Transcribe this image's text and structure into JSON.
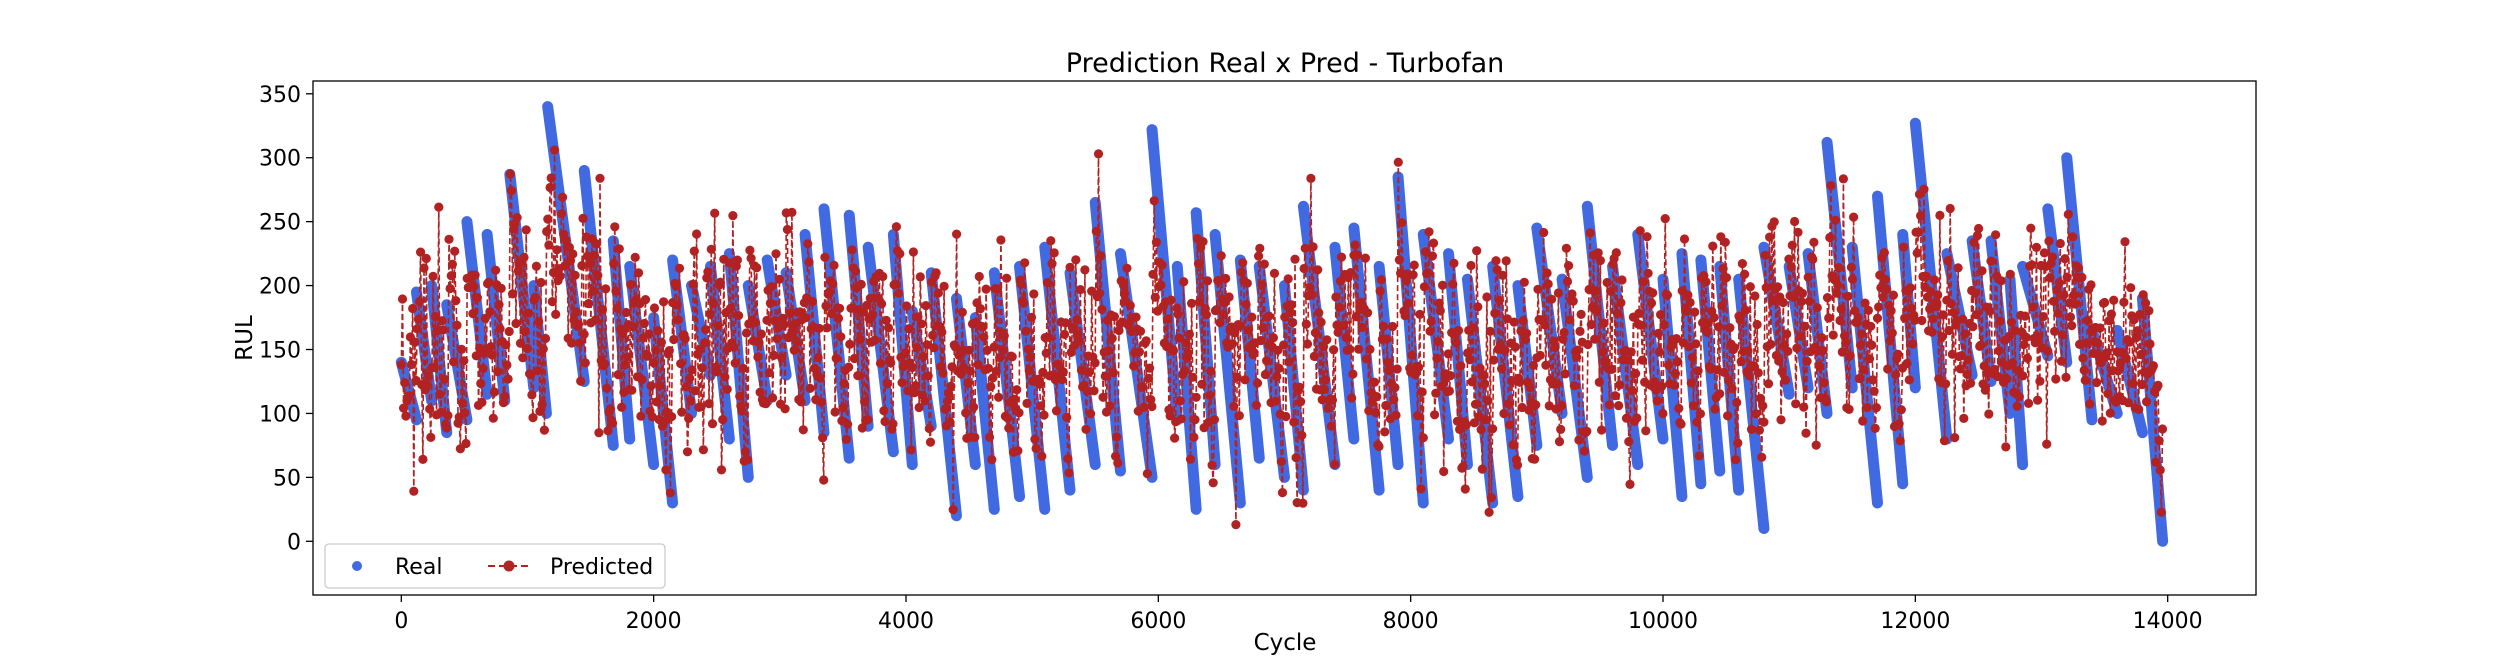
{
  "chart_data": {
    "type": "line",
    "title": "Prediction Real x Pred - Turbofan",
    "xlabel": "Cycle",
    "ylabel": "RUL",
    "xlim": [
      -700,
      14700
    ],
    "ylim": [
      -42,
      360
    ],
    "xticks": [
      0,
      2000,
      4000,
      6000,
      8000,
      10000,
      12000,
      14000
    ],
    "xtick_labels": [
      "0",
      "2000",
      "4000",
      "6000",
      "8000",
      "10000",
      "12000",
      "14000"
    ],
    "yticks": [
      0,
      50,
      100,
      150,
      200,
      250,
      300,
      350
    ],
    "ytick_labels": [
      "0",
      "50",
      "100",
      "150",
      "200",
      "250",
      "300",
      "350"
    ],
    "grid": false,
    "legend_position": "lower-left",
    "legend": [
      "Real",
      "Predicted"
    ],
    "colors": {
      "real": "#4169E1",
      "predicted": "#B22222"
    },
    "series": [
      {
        "name": "Real",
        "style": "points",
        "segments": [
          [
            0,
            140,
            120,
            95
          ],
          [
            120,
            195,
            240,
            110
          ],
          [
            240,
            200,
            360,
            85
          ],
          [
            360,
            185,
            520,
            95
          ],
          [
            520,
            250,
            680,
            115
          ],
          [
            680,
            240,
            820,
            110
          ],
          [
            860,
            287,
            1050,
            120
          ],
          [
            1050,
            200,
            1150,
            100
          ],
          [
            1160,
            340,
            1450,
            125
          ],
          [
            1450,
            290,
            1680,
            75
          ],
          [
            1680,
            235,
            1810,
            80
          ],
          [
            1810,
            215,
            2000,
            60
          ],
          [
            2000,
            175,
            2150,
            30
          ],
          [
            2150,
            220,
            2300,
            100
          ],
          [
            2300,
            200,
            2450,
            130
          ],
          [
            2450,
            215,
            2600,
            80
          ],
          [
            2600,
            225,
            2750,
            50
          ],
          [
            2750,
            200,
            2900,
            110
          ],
          [
            2900,
            220,
            3050,
            130
          ],
          [
            3050,
            210,
            3200,
            110
          ],
          [
            3200,
            240,
            3350,
            85
          ],
          [
            3350,
            260,
            3550,
            65
          ],
          [
            3550,
            255,
            3700,
            90
          ],
          [
            3700,
            230,
            3900,
            70
          ],
          [
            3900,
            240,
            4050,
            60
          ],
          [
            4050,
            180,
            4200,
            90
          ],
          [
            4200,
            210,
            4400,
            20
          ],
          [
            4400,
            190,
            4550,
            60
          ],
          [
            4550,
            175,
            4700,
            25
          ],
          [
            4700,
            210,
            4900,
            35
          ],
          [
            4900,
            215,
            5100,
            25
          ],
          [
            5100,
            230,
            5300,
            40
          ],
          [
            5300,
            210,
            5500,
            60
          ],
          [
            5500,
            265,
            5700,
            55
          ],
          [
            5700,
            225,
            5950,
            50
          ],
          [
            5950,
            322,
            6150,
            95
          ],
          [
            6150,
            215,
            6300,
            25
          ],
          [
            6300,
            257,
            6450,
            60
          ],
          [
            6450,
            240,
            6650,
            30
          ],
          [
            6650,
            220,
            6800,
            65
          ],
          [
            6800,
            215,
            7000,
            50
          ],
          [
            7000,
            200,
            7150,
            40
          ],
          [
            7150,
            262,
            7400,
            60
          ],
          [
            7400,
            230,
            7550,
            80
          ],
          [
            7550,
            245,
            7750,
            40
          ],
          [
            7750,
            215,
            7900,
            60
          ],
          [
            7900,
            285,
            8100,
            30
          ],
          [
            8100,
            240,
            8300,
            80
          ],
          [
            8300,
            225,
            8450,
            60
          ],
          [
            8450,
            205,
            8650,
            30
          ],
          [
            8650,
            215,
            8850,
            35
          ],
          [
            8850,
            200,
            9000,
            75
          ],
          [
            9000,
            245,
            9200,
            100
          ],
          [
            9200,
            205,
            9400,
            50
          ],
          [
            9400,
            262,
            9600,
            75
          ],
          [
            9600,
            215,
            9800,
            60
          ],
          [
            9800,
            240,
            10000,
            80
          ],
          [
            10000,
            205,
            10150,
            35
          ],
          [
            10150,
            225,
            10300,
            45
          ],
          [
            10300,
            220,
            10450,
            55
          ],
          [
            10450,
            215,
            10600,
            40
          ],
          [
            10600,
            205,
            10800,
            10
          ],
          [
            10800,
            230,
            11000,
            115
          ],
          [
            11000,
            215,
            11150,
            120
          ],
          [
            11150,
            225,
            11300,
            100
          ],
          [
            11300,
            312,
            11500,
            120
          ],
          [
            11500,
            230,
            11700,
            30
          ],
          [
            11700,
            270,
            11900,
            45
          ],
          [
            11900,
            240,
            12000,
            120
          ],
          [
            12000,
            327,
            12250,
            80
          ],
          [
            12250,
            225,
            12450,
            130
          ],
          [
            12450,
            235,
            12600,
            125
          ],
          [
            12600,
            235,
            12750,
            100
          ],
          [
            12750,
            205,
            12850,
            60
          ],
          [
            12850,
            215,
            13050,
            145
          ],
          [
            13050,
            260,
            13200,
            140
          ],
          [
            13200,
            300,
            13400,
            95
          ],
          [
            13400,
            165,
            13600,
            100
          ],
          [
            13600,
            165,
            13800,
            85
          ],
          [
            13800,
            190,
            13960,
            0
          ]
        ]
      },
      {
        "name": "Predicted",
        "style": "dashed-line-with-markers",
        "min": -25,
        "max": 306
      }
    ]
  }
}
